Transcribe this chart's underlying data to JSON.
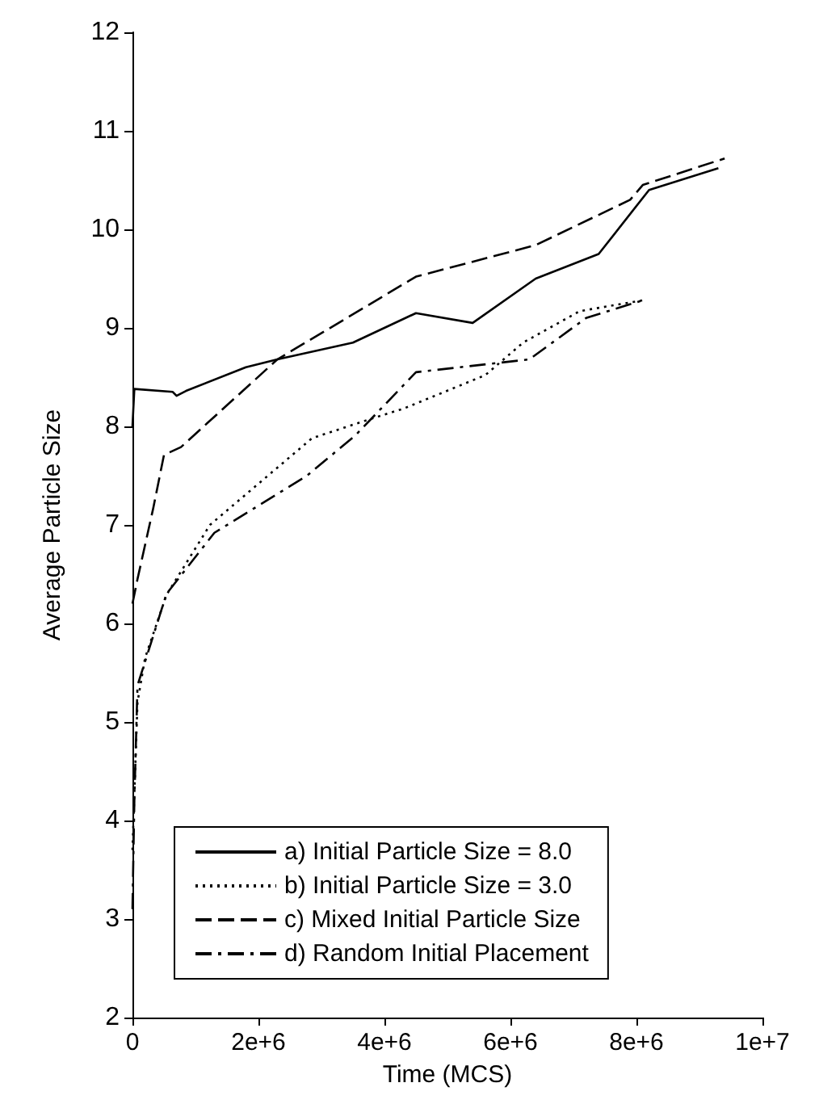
{
  "chart_data": {
    "type": "line",
    "xlabel": "Time (MCS)",
    "ylabel": "Average Particle Size",
    "xlim": [
      0,
      10000000
    ],
    "xticks": [
      {
        "value": 0,
        "label": "0"
      },
      {
        "value": 2000000,
        "label": "2e+6"
      },
      {
        "value": 4000000,
        "label": "4e+6"
      },
      {
        "value": 6000000,
        "label": "6e+6"
      },
      {
        "value": 8000000,
        "label": "8e+6"
      },
      {
        "value": 10000000,
        "label": "1e+7"
      }
    ],
    "ylim": [
      2,
      12
    ],
    "yticks": [
      2,
      3,
      4,
      5,
      6,
      7,
      8,
      9,
      10,
      11,
      12
    ],
    "grid": false,
    "legend": "bottom",
    "marker": "none",
    "series": [
      {
        "name": "a) Initial Particle Size = 8.0",
        "color": "#000000",
        "line_style": "solid",
        "x": [
          0,
          30000,
          640000,
          700000,
          850000,
          1800000,
          2300000,
          3500000,
          4500000,
          5400000,
          6400000,
          7400000,
          8200000,
          9300000
        ],
        "values": [
          8.0,
          8.38,
          8.35,
          8.31,
          8.36,
          8.6,
          8.68,
          8.85,
          9.15,
          9.05,
          9.5,
          9.75,
          10.4,
          10.62
        ]
      },
      {
        "name": "b) Initial Particle Size = 3.0",
        "color": "#000000",
        "line_style": "dotted",
        "x": [
          0,
          80000,
          200000,
          540000,
          1230000,
          2850000,
          3800000,
          4300000,
          5600000,
          6200000,
          7100000,
          8100000
        ],
        "values": [
          3.7,
          5.2,
          5.65,
          6.29,
          7.0,
          7.88,
          8.08,
          8.18,
          8.52,
          8.85,
          9.17,
          9.28
        ]
      },
      {
        "name": "c) Mixed Initial Particle Size",
        "color": "#000000",
        "line_style": "dashed",
        "x": [
          0,
          80000,
          330000,
          500000,
          770000,
          2300000,
          4500000,
          6400000,
          7900000,
          8100000,
          9400000
        ],
        "values": [
          6.2,
          6.45,
          7.17,
          7.71,
          7.79,
          8.68,
          9.52,
          9.84,
          10.3,
          10.45,
          10.72
        ]
      },
      {
        "name": "d) Random Initial Placement",
        "color": "#000000",
        "line_style": "dashdot",
        "x": [
          0,
          30000,
          80000,
          540000,
          1300000,
          2770000,
          3540000,
          4500000,
          6300000,
          7200000,
          8100000
        ],
        "values": [
          3.1,
          4.2,
          5.37,
          6.3,
          6.92,
          7.5,
          7.91,
          8.55,
          8.68,
          9.1,
          9.28
        ]
      }
    ]
  }
}
